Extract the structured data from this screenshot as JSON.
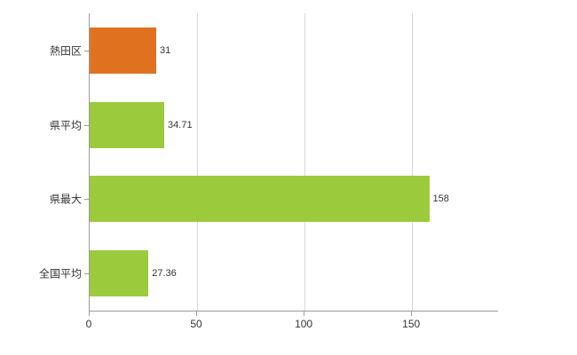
{
  "chart_data": {
    "type": "bar",
    "orientation": "horizontal",
    "title": "",
    "xlabel": "",
    "ylabel": "",
    "categories": [
      "熱田区",
      "県平均",
      "県最大",
      "全国平均"
    ],
    "values": [
      31,
      34.71,
      158,
      27.36
    ],
    "value_labels": [
      "31",
      "34.71",
      "158",
      "27.36"
    ],
    "bar_colors": [
      "#e0711f",
      "#9bcb3c",
      "#9bcb3c",
      "#9bcb3c"
    ],
    "xlim": [
      0,
      190
    ],
    "x_ticks": [
      0,
      50,
      100,
      150
    ],
    "x_tick_labels": [
      "0",
      "50",
      "100",
      "150"
    ],
    "grid": "vertical-gridlines-on",
    "legend": "none"
  },
  "colors": {
    "background": "#ffffff",
    "grid": "#d8d8d8",
    "axis": "#9a9a9a",
    "text": "#333333"
  }
}
